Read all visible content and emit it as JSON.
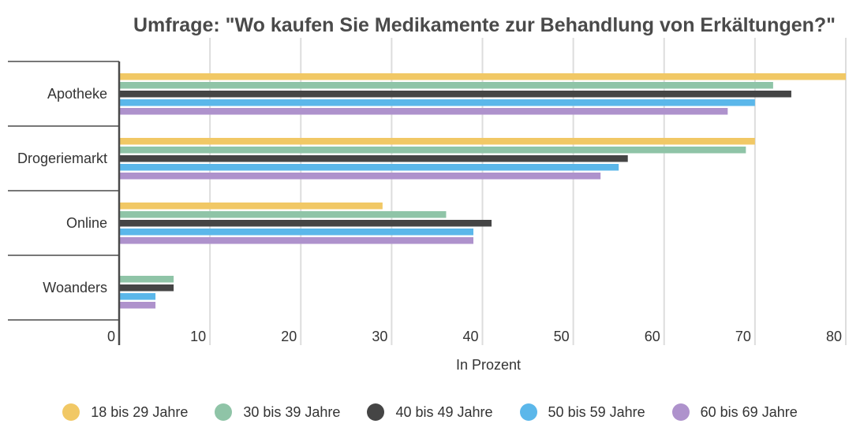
{
  "chart_data": {
    "type": "bar",
    "orientation": "horizontal",
    "title": "Umfrage: \"Wo kaufen Sie Medikamente zur Behandlung von Erkältungen?\"",
    "xlabel": "In Prozent",
    "ylabel": "",
    "xlim": [
      0,
      80
    ],
    "xticks": [
      0,
      10,
      20,
      30,
      40,
      50,
      60,
      70,
      80
    ],
    "grid": true,
    "legend_position": "bottom",
    "categories": [
      "Apotheke",
      "Drogeriemarkt",
      "Online",
      "Woanders"
    ],
    "series": [
      {
        "name": "18 bis 29 Jahre",
        "color": "#f1c865",
        "values": [
          80,
          70,
          29,
          0
        ]
      },
      {
        "name": "30 bis 39 Jahre",
        "color": "#8fc4a7",
        "values": [
          72,
          69,
          36,
          6
        ]
      },
      {
        "name": "40 bis 49 Jahre",
        "color": "#454545",
        "values": [
          74,
          56,
          41,
          6
        ]
      },
      {
        "name": "50 bis 59 Jahre",
        "color": "#5bb7ea",
        "values": [
          70,
          55,
          39,
          4
        ]
      },
      {
        "name": "60 bis 69 Jahre",
        "color": "#ae92cc",
        "values": [
          67,
          53,
          39,
          4
        ]
      }
    ]
  }
}
